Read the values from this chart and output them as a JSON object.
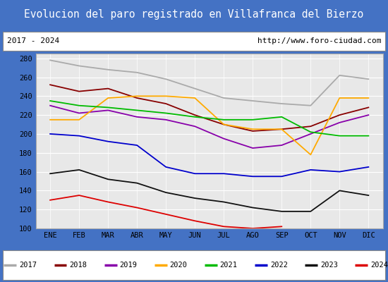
{
  "title": "Evolucion del paro registrado en Villafranca del Bierzo",
  "subtitle_left": "2017 - 2024",
  "subtitle_right": "http://www.foro-ciudad.com",
  "title_bg": "#4472c4",
  "title_color": "#ffffff",
  "x_labels": [
    "ENE",
    "FEB",
    "MAR",
    "ABR",
    "MAY",
    "JUN",
    "JUL",
    "AGO",
    "SEP",
    "OCT",
    "NOV",
    "DIC"
  ],
  "ylim": [
    100,
    285
  ],
  "yticks": [
    100,
    120,
    140,
    160,
    180,
    200,
    220,
    240,
    260,
    280
  ],
  "series": {
    "2017": {
      "color": "#aaaaaa",
      "data": [
        278,
        272,
        268,
        265,
        258,
        248,
        238,
        235,
        232,
        230,
        262,
        258
      ]
    },
    "2018": {
      "color": "#880000",
      "data": [
        252,
        245,
        248,
        238,
        232,
        220,
        210,
        203,
        205,
        208,
        220,
        228
      ]
    },
    "2019": {
      "color": "#8800aa",
      "data": [
        230,
        222,
        225,
        218,
        215,
        208,
        195,
        185,
        188,
        200,
        212,
        220
      ]
    },
    "2020": {
      "color": "#ffaa00",
      "data": [
        215,
        215,
        238,
        240,
        240,
        238,
        210,
        205,
        205,
        178,
        238,
        238
      ]
    },
    "2021": {
      "color": "#00bb00",
      "data": [
        235,
        230,
        228,
        225,
        222,
        218,
        215,
        215,
        218,
        202,
        198,
        198
      ]
    },
    "2022": {
      "color": "#0000cc",
      "data": [
        200,
        198,
        192,
        188,
        165,
        158,
        158,
        155,
        155,
        162,
        160,
        165
      ]
    },
    "2023": {
      "color": "#111111",
      "data": [
        158,
        162,
        152,
        148,
        138,
        132,
        128,
        122,
        118,
        118,
        140,
        135
      ]
    },
    "2024": {
      "color": "#dd0000",
      "data": [
        130,
        135,
        128,
        122,
        115,
        108,
        102,
        100,
        102,
        null,
        null,
        null
      ]
    }
  }
}
